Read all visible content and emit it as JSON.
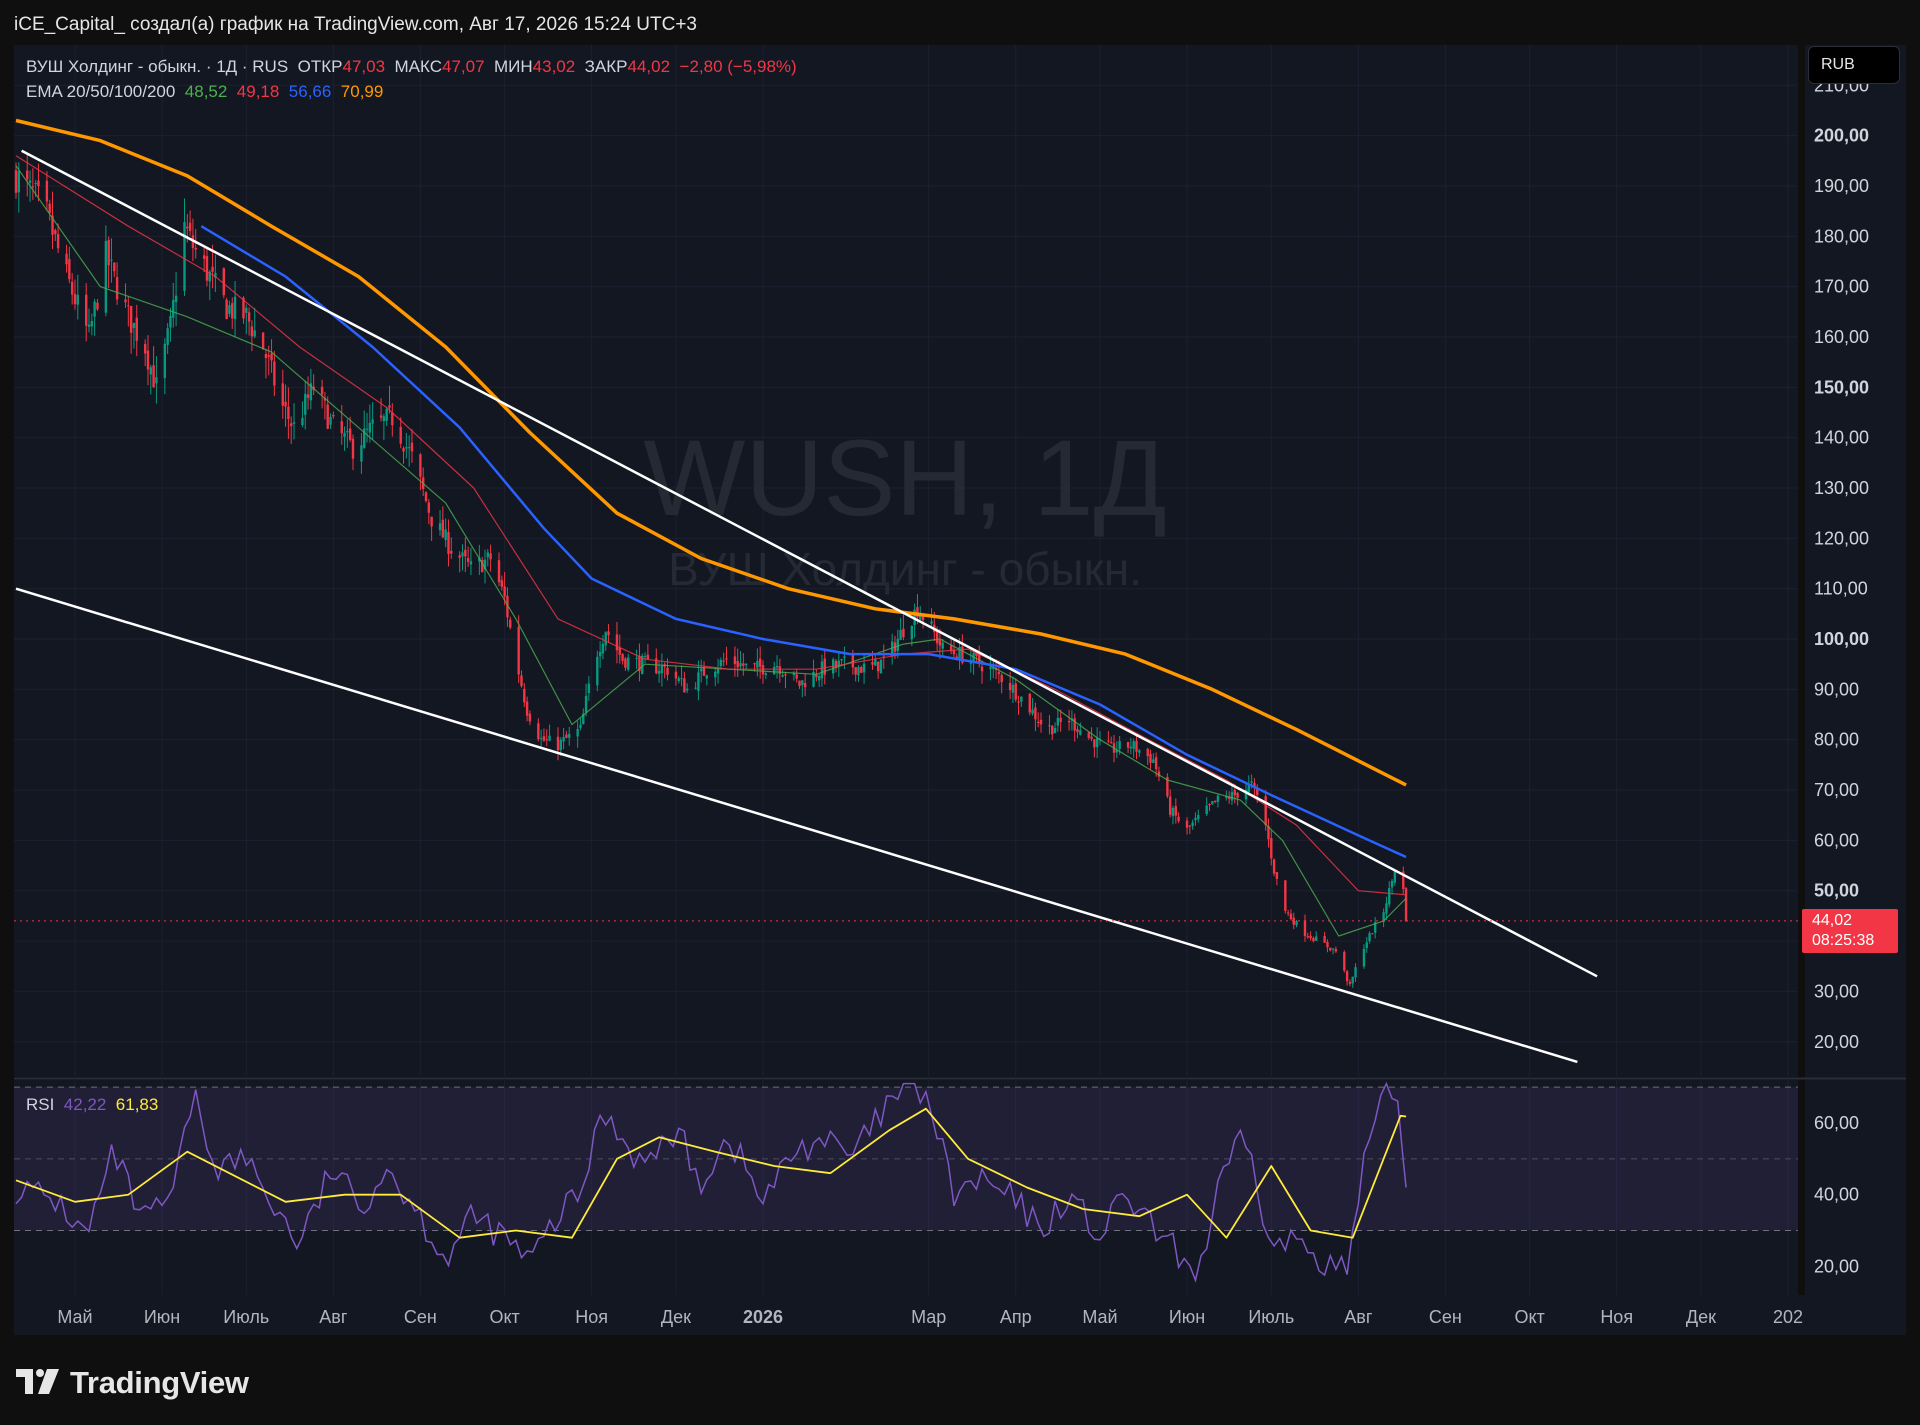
{
  "header": {
    "attribution": "iCE_Capital_ создал(а) график на TradingView.com, Авг 17, 2026 15:24 UTC+3"
  },
  "legend": {
    "symbol": "ВУШ Холдинг - обыкн. · 1Д · RUS",
    "open_label": "ОТКР",
    "open": "47,03",
    "high_label": "МАКС",
    "high": "47,07",
    "low_label": "МИН",
    "low": "43,02",
    "close_label": "ЗАКР",
    "close": "44,02",
    "change": "−2,80 (−5,98%)",
    "ema_label": "EMA 20/50/100/200",
    "ema20": "48,52",
    "ema50": "49,18",
    "ema100": "56,66",
    "ema200": "70,99"
  },
  "currency": "RUB",
  "price_label": {
    "price": "44,02",
    "countdown": "08:25:38"
  },
  "watermark": {
    "ticker": "WUSH, 1Д",
    "name": "ВУШ Холдинг - обыкн."
  },
  "rsi_legend": {
    "label": "RSI",
    "value": "42,22",
    "ma": "61,83"
  },
  "footer": {
    "brand": "TradingView"
  },
  "colors": {
    "background": "#0f0f10",
    "panel": "#131722",
    "up": "#089981",
    "down": "#f23645",
    "ema20": "#4caf50",
    "ema50": "#f23645",
    "ema100": "#2962ff",
    "ema200": "#ff9800",
    "rsi": "#7e57c2",
    "rsi_ma": "#ffeb3b"
  },
  "chart_data": [
    {
      "type": "candlestick",
      "x_labels": [
        "Май",
        "Июн",
        "Июль",
        "Авг",
        "Сен",
        "Окт",
        "Ноя",
        "Дек",
        "2026",
        "Мар",
        "Апр",
        "Май",
        "Июн",
        "Июль",
        "Авг",
        "Сен",
        "Окт",
        "Ноя",
        "Дек",
        "202"
      ],
      "x_label_dates": [
        "2025-05-01",
        "2025-06-01",
        "2025-07-01",
        "2025-08-01",
        "2025-09-01",
        "2025-10-01",
        "2025-11-01",
        "2025-12-01",
        "2026-01-01",
        "2026-03-01",
        "2026-04-01",
        "2026-05-01",
        "2026-06-01",
        "2026-07-01",
        "2026-08-01",
        "2026-09-01",
        "2026-10-01",
        "2026-11-01",
        "2026-12-01",
        "2027-01-01"
      ],
      "y_ticks": [
        20,
        30,
        40,
        50,
        60,
        70,
        80,
        90,
        100,
        110,
        120,
        130,
        140,
        150,
        160,
        170,
        180,
        190,
        200,
        210
      ],
      "y_tick_labels": [
        "20,00",
        "30,00",
        "40,00",
        "50,00",
        "60,00",
        "70,00",
        "80,00",
        "90,00",
        "100,00",
        "110,00",
        "120,00",
        "130,00",
        "140,00",
        "150,00",
        "160,00",
        "170,00",
        "180,00",
        "190,00",
        "200,00",
        "210,00"
      ],
      "y_bold_ticks": [
        50,
        100,
        150,
        200
      ],
      "ylim": [
        13,
        218
      ],
      "last_price": 44.02,
      "close_path": [
        [
          "2025-04-10",
          192
        ],
        [
          "2025-04-20",
          186
        ],
        [
          "2025-04-28",
          172
        ],
        [
          "2025-05-06",
          160
        ],
        [
          "2025-05-12",
          176
        ],
        [
          "2025-05-20",
          164
        ],
        [
          "2025-05-26",
          158
        ],
        [
          "2025-05-30",
          150
        ],
        [
          "2025-06-04",
          162
        ],
        [
          "2025-06-09",
          182
        ],
        [
          "2025-06-12",
          178
        ],
        [
          "2025-06-18",
          172
        ],
        [
          "2025-06-24",
          166
        ],
        [
          "2025-07-01",
          164
        ],
        [
          "2025-07-07",
          158
        ],
        [
          "2025-07-14",
          146
        ],
        [
          "2025-07-18",
          142
        ],
        [
          "2025-07-25",
          150
        ],
        [
          "2025-08-01",
          142
        ],
        [
          "2025-08-08",
          138
        ],
        [
          "2025-08-15",
          142
        ],
        [
          "2025-08-22",
          144
        ],
        [
          "2025-08-29",
          136
        ],
        [
          "2025-09-05",
          124
        ],
        [
          "2025-09-12",
          118
        ],
        [
          "2025-09-19",
          114
        ],
        [
          "2025-09-26",
          116
        ],
        [
          "2025-10-01",
          108
        ],
        [
          "2025-10-05",
          96
        ],
        [
          "2025-10-09",
          86
        ],
        [
          "2025-10-14",
          80
        ],
        [
          "2025-10-20",
          79
        ],
        [
          "2025-10-28",
          82
        ],
        [
          "2025-11-02",
          96
        ],
        [
          "2025-11-06",
          102
        ],
        [
          "2025-11-12",
          96
        ],
        [
          "2025-11-20",
          95
        ],
        [
          "2025-11-28",
          94
        ],
        [
          "2025-12-05",
          90
        ],
        [
          "2025-12-12",
          94
        ],
        [
          "2025-12-20",
          96
        ],
        [
          "2025-12-28",
          94
        ],
        [
          "2026-01-06",
          95
        ],
        [
          "2026-01-14",
          91
        ],
        [
          "2026-01-22",
          94
        ],
        [
          "2026-01-30",
          95
        ],
        [
          "2026-02-08",
          94
        ],
        [
          "2026-02-14",
          96
        ],
        [
          "2026-02-20",
          102
        ],
        [
          "2026-02-25",
          106
        ],
        [
          "2026-03-01",
          103
        ],
        [
          "2026-03-06",
          98
        ],
        [
          "2026-03-12",
          97
        ],
        [
          "2026-03-20",
          95
        ],
        [
          "2026-03-28",
          92
        ],
        [
          "2026-04-05",
          87
        ],
        [
          "2026-04-12",
          82
        ],
        [
          "2026-04-20",
          84
        ],
        [
          "2026-04-28",
          80
        ],
        [
          "2026-05-05",
          78
        ],
        [
          "2026-05-12",
          79
        ],
        [
          "2026-05-20",
          76
        ],
        [
          "2026-05-26",
          66
        ],
        [
          "2026-06-01",
          62
        ],
        [
          "2026-06-06",
          65
        ],
        [
          "2026-06-12",
          68
        ],
        [
          "2026-06-18",
          69
        ],
        [
          "2026-06-24",
          71
        ],
        [
          "2026-06-28",
          66
        ],
        [
          "2026-07-02",
          54
        ],
        [
          "2026-07-06",
          46
        ],
        [
          "2026-07-12",
          42
        ],
        [
          "2026-07-18",
          40
        ],
        [
          "2026-07-24",
          38
        ],
        [
          "2026-07-29",
          31
        ],
        [
          "2026-08-02",
          38
        ],
        [
          "2026-08-06",
          42
        ],
        [
          "2026-08-10",
          46
        ],
        [
          "2026-08-13",
          52
        ],
        [
          "2026-08-15",
          57
        ],
        [
          "2026-08-17",
          50
        ],
        [
          "2026-08-18",
          44
        ]
      ],
      "ema_series": [
        {
          "name": "EMA 20",
          "color": "#4caf50",
          "points": [
            [
              "2025-04-10",
              194
            ],
            [
              "2025-05-10",
              170
            ],
            [
              "2025-06-10",
              164
            ],
            [
              "2025-07-10",
              157
            ],
            [
              "2025-08-10",
              142
            ],
            [
              "2025-09-10",
              127
            ],
            [
              "2025-10-05",
              104
            ],
            [
              "2025-10-25",
              83
            ],
            [
              "2025-11-20",
              95
            ],
            [
              "2025-12-20",
              94
            ],
            [
              "2026-01-20",
              93
            ],
            [
              "2026-02-20",
              99
            ],
            [
              "2026-03-05",
              100
            ],
            [
              "2026-04-01",
              92
            ],
            [
              "2026-05-01",
              80
            ],
            [
              "2026-05-25",
              72
            ],
            [
              "2026-06-20",
              68
            ],
            [
              "2026-07-05",
              60
            ],
            [
              "2026-07-25",
              41
            ],
            [
              "2026-08-10",
              44
            ],
            [
              "2026-08-18",
              48.5
            ]
          ]
        },
        {
          "name": "EMA 50",
          "color": "#f23645",
          "points": [
            [
              "2025-04-10",
              196
            ],
            [
              "2025-05-20",
              182
            ],
            [
              "2025-06-20",
              172
            ],
            [
              "2025-07-20",
              158
            ],
            [
              "2025-08-20",
              146
            ],
            [
              "2025-09-20",
              130
            ],
            [
              "2025-10-20",
              104
            ],
            [
              "2025-11-20",
              96
            ],
            [
              "2025-12-20",
              94
            ],
            [
              "2026-01-20",
              94
            ],
            [
              "2026-02-20",
              97
            ],
            [
              "2026-03-15",
              98
            ],
            [
              "2026-04-15",
              90
            ],
            [
              "2026-05-15",
              81
            ],
            [
              "2026-06-15",
              72
            ],
            [
              "2026-07-10",
              63
            ],
            [
              "2026-08-01",
              50
            ],
            [
              "2026-08-18",
              49.2
            ]
          ]
        },
        {
          "name": "EMA 100",
          "color": "#2962ff",
          "points": [
            [
              "2025-06-15",
              182
            ],
            [
              "2025-07-15",
              172
            ],
            [
              "2025-08-15",
              158
            ],
            [
              "2025-09-15",
              142
            ],
            [
              "2025-10-15",
              122
            ],
            [
              "2025-11-01",
              112
            ],
            [
              "2025-12-01",
              104
            ],
            [
              "2026-01-01",
              100
            ],
            [
              "2026-02-01",
              97
            ],
            [
              "2026-03-01",
              97
            ],
            [
              "2026-04-01",
              94
            ],
            [
              "2026-05-01",
              87
            ],
            [
              "2026-06-01",
              77
            ],
            [
              "2026-07-01",
              69
            ],
            [
              "2026-08-01",
              61
            ],
            [
              "2026-08-18",
              56.7
            ]
          ]
        },
        {
          "name": "EMA 200",
          "color": "#ff9800",
          "points": [
            [
              "2025-04-10",
              203
            ],
            [
              "2025-05-10",
              199
            ],
            [
              "2025-06-10",
              192
            ],
            [
              "2025-07-10",
              182
            ],
            [
              "2025-08-10",
              172
            ],
            [
              "2025-09-10",
              158
            ],
            [
              "2025-10-10",
              141
            ],
            [
              "2025-11-10",
              125
            ],
            [
              "2025-12-10",
              116
            ],
            [
              "2026-01-10",
              110
            ],
            [
              "2026-02-10",
              106
            ],
            [
              "2026-03-10",
              104
            ],
            [
              "2026-04-10",
              101
            ],
            [
              "2026-05-10",
              97
            ],
            [
              "2026-06-10",
              90
            ],
            [
              "2026-07-10",
              82
            ],
            [
              "2026-08-18",
              71
            ]
          ]
        }
      ],
      "trendlines": [
        {
          "from": [
            "2025-04-12",
            197
          ],
          "to": [
            "2026-10-25",
            33
          ]
        },
        {
          "from": [
            "2025-04-10",
            110
          ],
          "to": [
            "2026-10-18",
            16
          ]
        }
      ]
    },
    {
      "type": "line",
      "title": "RSI",
      "y_ticks": [
        20,
        40,
        60
      ],
      "y_tick_labels": [
        "20,00",
        "40,00",
        "60,00"
      ],
      "bands": [
        30,
        50,
        70
      ],
      "ylim": [
        12,
        72
      ],
      "rsi": [
        [
          "2025-04-10",
          42
        ],
        [
          "2025-04-25",
          38
        ],
        [
          "2025-05-05",
          28
        ],
        [
          "2025-05-15",
          52
        ],
        [
          "2025-05-25",
          32
        ],
        [
          "2025-06-05",
          40
        ],
        [
          "2025-06-12",
          68
        ],
        [
          "2025-06-20",
          48
        ],
        [
          "2025-07-01",
          50
        ],
        [
          "2025-07-10",
          38
        ],
        [
          "2025-07-20",
          26
        ],
        [
          "2025-08-01",
          48
        ],
        [
          "2025-08-10",
          36
        ],
        [
          "2025-08-20",
          48
        ],
        [
          "2025-09-01",
          34
        ],
        [
          "2025-09-10",
          22
        ],
        [
          "2025-09-20",
          34
        ],
        [
          "2025-10-01",
          28
        ],
        [
          "2025-10-10",
          21
        ],
        [
          "2025-10-20",
          34
        ],
        [
          "2025-10-28",
          40
        ],
        [
          "2025-11-05",
          64
        ],
        [
          "2025-11-10",
          58
        ],
        [
          "2025-11-20",
          48
        ],
        [
          "2025-12-01",
          58
        ],
        [
          "2025-12-10",
          44
        ],
        [
          "2025-12-20",
          56
        ],
        [
          "2026-01-01",
          38
        ],
        [
          "2026-01-12",
          52
        ],
        [
          "2026-01-22",
          56
        ],
        [
          "2026-02-01",
          50
        ],
        [
          "2026-02-12",
          62
        ],
        [
          "2026-02-22",
          72
        ],
        [
          "2026-03-01",
          66
        ],
        [
          "2026-03-10",
          40
        ],
        [
          "2026-03-20",
          44
        ],
        [
          "2026-04-01",
          38
        ],
        [
          "2026-04-10",
          30
        ],
        [
          "2026-04-20",
          40
        ],
        [
          "2026-05-01",
          28
        ],
        [
          "2026-05-10",
          40
        ],
        [
          "2026-05-20",
          30
        ],
        [
          "2026-05-28",
          24
        ],
        [
          "2026-06-05",
          18
        ],
        [
          "2026-06-14",
          46
        ],
        [
          "2026-06-22",
          56
        ],
        [
          "2026-07-01",
          24
        ],
        [
          "2026-07-10",
          28
        ],
        [
          "2026-07-20",
          22
        ],
        [
          "2026-07-28",
          18
        ],
        [
          "2026-08-03",
          48
        ],
        [
          "2026-08-10",
          66
        ],
        [
          "2026-08-14",
          72
        ],
        [
          "2026-08-16",
          56
        ],
        [
          "2026-08-18",
          42
        ]
      ],
      "rsi_ma": [
        [
          "2025-04-10",
          44
        ],
        [
          "2025-05-01",
          38
        ],
        [
          "2025-05-20",
          40
        ],
        [
          "2025-06-10",
          52
        ],
        [
          "2025-06-25",
          46
        ],
        [
          "2025-07-15",
          38
        ],
        [
          "2025-08-05",
          40
        ],
        [
          "2025-08-25",
          40
        ],
        [
          "2025-09-15",
          28
        ],
        [
          "2025-10-05",
          30
        ],
        [
          "2025-10-25",
          28
        ],
        [
          "2025-11-10",
          50
        ],
        [
          "2025-11-25",
          56
        ],
        [
          "2025-12-15",
          52
        ],
        [
          "2026-01-05",
          48
        ],
        [
          "2026-01-25",
          46
        ],
        [
          "2026-02-15",
          58
        ],
        [
          "2026-02-28",
          64
        ],
        [
          "2026-03-15",
          50
        ],
        [
          "2026-04-05",
          42
        ],
        [
          "2026-04-25",
          36
        ],
        [
          "2026-05-15",
          34
        ],
        [
          "2026-06-01",
          40
        ],
        [
          "2026-06-15",
          28
        ],
        [
          "2026-07-01",
          48
        ],
        [
          "2026-07-15",
          30
        ],
        [
          "2026-07-30",
          28
        ],
        [
          "2026-08-10",
          50
        ],
        [
          "2026-08-16",
          62
        ],
        [
          "2026-08-18",
          61.8
        ]
      ]
    }
  ]
}
